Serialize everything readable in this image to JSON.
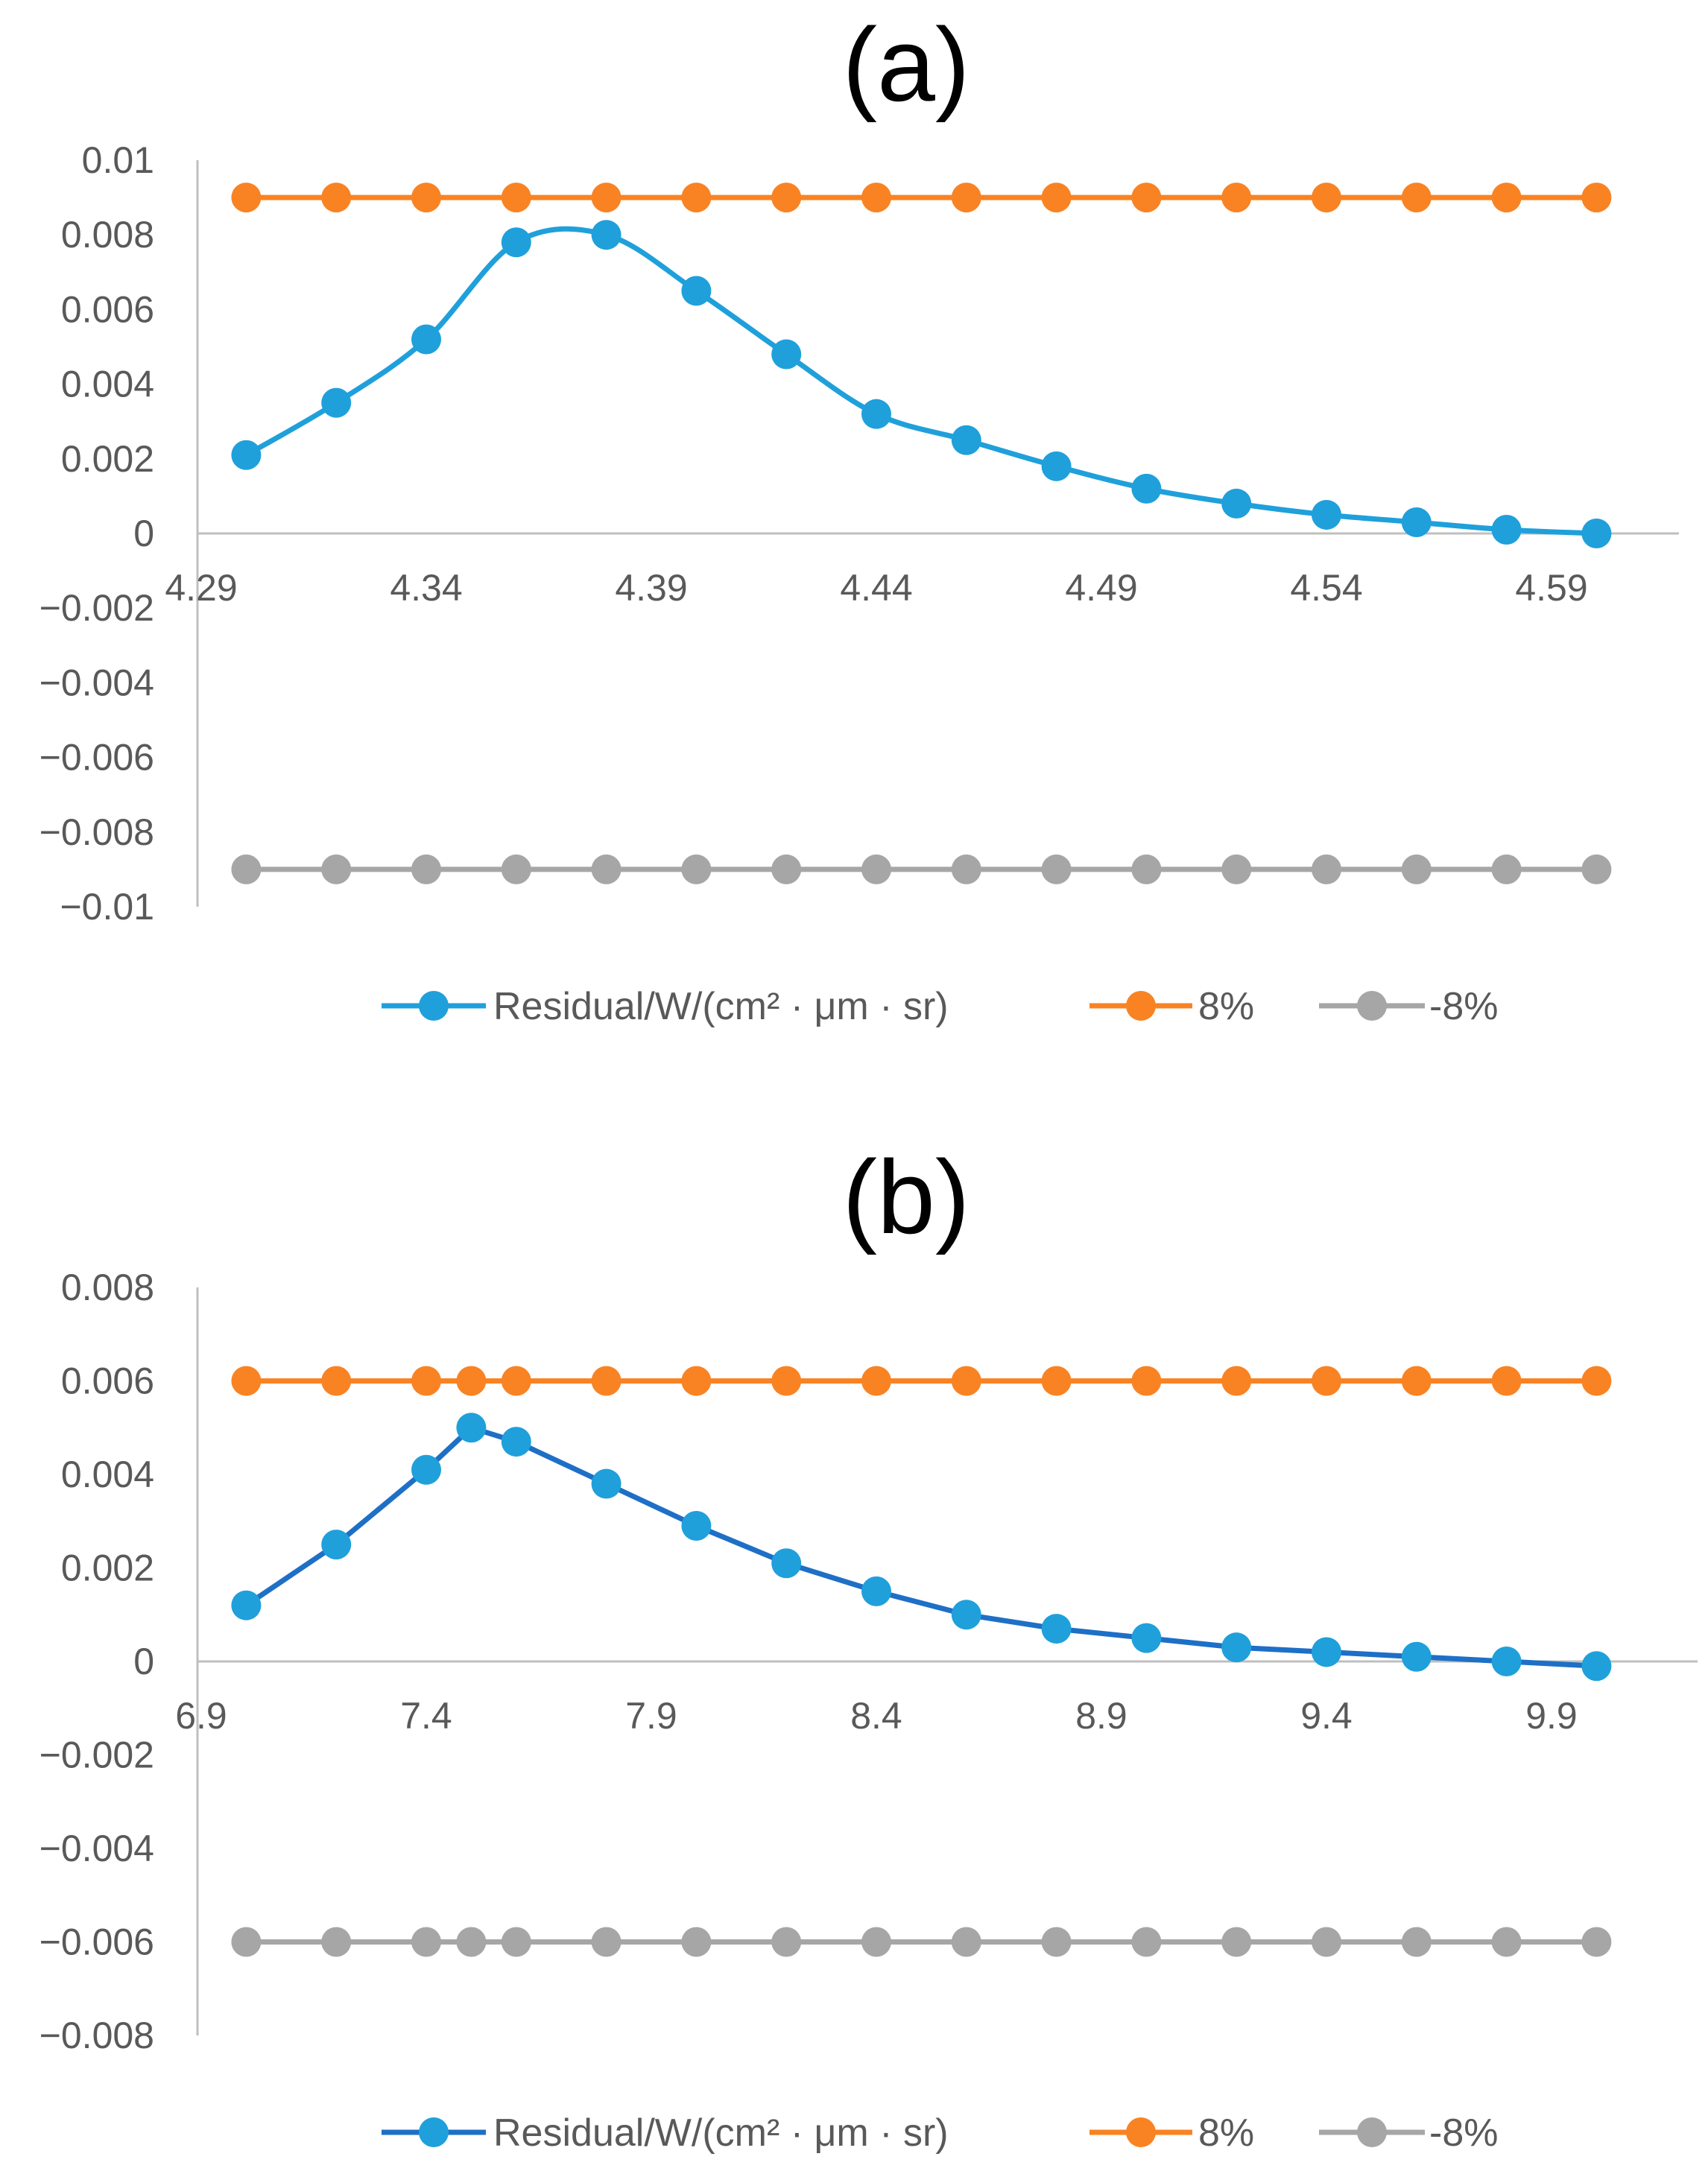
{
  "chart_data": [
    {
      "type": "line",
      "title": "(a)",
      "xlabel": "",
      "ylabel": "",
      "xlim": [
        4.29,
        4.62
      ],
      "ylim": [
        -0.01,
        0.01
      ],
      "grid": false,
      "smooth": true,
      "x_ticks": [
        "4.29",
        "4.34",
        "4.39",
        "4.44",
        "4.49",
        "4.54",
        "4.59"
      ],
      "x_tick_values": [
        4.29,
        4.34,
        4.39,
        4.44,
        4.49,
        4.54,
        4.59
      ],
      "y_ticks": [
        "0.01",
        "0.008",
        "0.006",
        "0.004",
        "0.002",
        "0",
        "−0.002",
        "−0.004",
        "−0.006",
        "−0.008",
        "−0.01"
      ],
      "y_tick_values": [
        0.01,
        0.008,
        0.006,
        0.004,
        0.002,
        0,
        -0.002,
        -0.004,
        -0.006,
        -0.008,
        -0.01
      ],
      "legend_position": "bottom",
      "series": [
        {
          "name": "Residual/W/(cm² · μm · sr)",
          "color": "#1FA0DB",
          "x": [
            4.3,
            4.32,
            4.34,
            4.36,
            4.38,
            4.4,
            4.42,
            4.44,
            4.46,
            4.48,
            4.5,
            4.52,
            4.54,
            4.56,
            4.58,
            4.6
          ],
          "values": [
            0.0021,
            0.0035,
            0.0052,
            0.0078,
            0.008,
            0.0065,
            0.0048,
            0.0032,
            0.0025,
            0.0018,
            0.0012,
            0.0008,
            0.0005,
            0.0003,
            0.0001,
            0.0
          ]
        },
        {
          "name": "8%",
          "color": "#F98323",
          "x": [
            4.3,
            4.32,
            4.34,
            4.36,
            4.38,
            4.4,
            4.42,
            4.44,
            4.46,
            4.48,
            4.5,
            4.52,
            4.54,
            4.56,
            4.58,
            4.6
          ],
          "values": [
            0.009,
            0.009,
            0.009,
            0.009,
            0.009,
            0.009,
            0.009,
            0.009,
            0.009,
            0.009,
            0.009,
            0.009,
            0.009,
            0.009,
            0.009,
            0.009
          ]
        },
        {
          "name": "-8%",
          "color": "#A6A6A6",
          "x": [
            4.3,
            4.32,
            4.34,
            4.36,
            4.38,
            4.4,
            4.42,
            4.44,
            4.46,
            4.48,
            4.5,
            4.52,
            4.54,
            4.56,
            4.58,
            4.6
          ],
          "values": [
            -0.009,
            -0.009,
            -0.009,
            -0.009,
            -0.009,
            -0.009,
            -0.009,
            -0.009,
            -0.009,
            -0.009,
            -0.009,
            -0.009,
            -0.009,
            -0.009,
            -0.009,
            -0.009
          ]
        }
      ]
    },
    {
      "type": "line",
      "title": "(b)",
      "xlabel": "",
      "ylabel": "",
      "xlim": [
        6.9,
        10.2
      ],
      "ylim": [
        -0.008,
        0.008
      ],
      "grid": false,
      "smooth": false,
      "x_ticks": [
        "6.9",
        "7.4",
        "7.9",
        "8.4",
        "8.9",
        "9.4",
        "9.9"
      ],
      "x_tick_values": [
        6.9,
        7.4,
        7.9,
        8.4,
        8.9,
        9.4,
        9.9
      ],
      "y_ticks": [
        "0.008",
        "0.006",
        "0.004",
        "0.002",
        "0",
        "−0.002",
        "−0.004",
        "−0.006",
        "−0.008"
      ],
      "y_tick_values": [
        0.008,
        0.006,
        0.004,
        0.002,
        0,
        -0.002,
        -0.004,
        -0.006,
        -0.008
      ],
      "legend_position": "bottom",
      "series": [
        {
          "name": "Residual/W/(cm² · μm · sr)",
          "color": "#1E6FC6",
          "marker_color": "#1FA0DB",
          "x": [
            7.0,
            7.2,
            7.4,
            7.5,
            7.6,
            7.8,
            8.0,
            8.2,
            8.4,
            8.6,
            8.8,
            9.0,
            9.2,
            9.4,
            9.6,
            9.8,
            10.0
          ],
          "values": [
            0.0012,
            0.0025,
            0.0041,
            0.005,
            0.0047,
            0.0038,
            0.0029,
            0.0021,
            0.0015,
            0.001,
            0.0007,
            0.0005,
            0.0003,
            0.0002,
            0.0001,
            0.0,
            -0.0001
          ]
        },
        {
          "name": "8%",
          "color": "#F98323",
          "x": [
            7.0,
            7.2,
            7.4,
            7.5,
            7.6,
            7.8,
            8.0,
            8.2,
            8.4,
            8.6,
            8.8,
            9.0,
            9.2,
            9.4,
            9.6,
            9.8,
            10.0
          ],
          "values": [
            0.006,
            0.006,
            0.006,
            0.006,
            0.006,
            0.006,
            0.006,
            0.006,
            0.006,
            0.006,
            0.006,
            0.006,
            0.006,
            0.006,
            0.006,
            0.006,
            0.006
          ]
        },
        {
          "name": "-8%",
          "color": "#A6A6A6",
          "x": [
            7.0,
            7.2,
            7.4,
            7.5,
            7.6,
            7.8,
            8.0,
            8.2,
            8.4,
            8.6,
            8.8,
            9.0,
            9.2,
            9.4,
            9.6,
            9.8,
            10.0
          ],
          "values": [
            -0.006,
            -0.006,
            -0.006,
            -0.006,
            -0.006,
            -0.006,
            -0.006,
            -0.006,
            -0.006,
            -0.006,
            -0.006,
            -0.006,
            -0.006,
            -0.006,
            -0.006,
            -0.006,
            -0.006
          ]
        }
      ]
    }
  ]
}
